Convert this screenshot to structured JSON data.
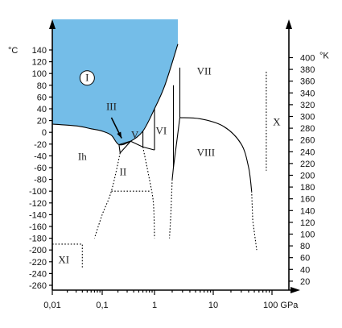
{
  "chart_data": {
    "type": "phase-diagram",
    "x_axis": {
      "scale": "log",
      "ticks": [
        0.01,
        0.1,
        1,
        10,
        100
      ],
      "tick_labels": [
        "0,01",
        "0,1",
        "1",
        "10",
        "100 GPa"
      ]
    },
    "y_axis_left": {
      "unit": "°C",
      "ticks": [
        140,
        120,
        100,
        80,
        60,
        40,
        20,
        0,
        -20,
        -40,
        -60,
        -80,
        -100,
        -120,
        -140,
        -160,
        -180,
        -200,
        -220,
        -240,
        -260
      ],
      "tick_labels": [
        "140",
        "120",
        "100",
        "80",
        "60",
        "40",
        "20",
        "0",
        "-20",
        "-40",
        "-60",
        "-80",
        "-100",
        "-120",
        "-140",
        "-160",
        "-180",
        "-200",
        "-220",
        "-240",
        "-260"
      ]
    },
    "y_axis_right": {
      "unit": "°K",
      "ticks": [
        400,
        380,
        360,
        340,
        320,
        300,
        280,
        260,
        240,
        220,
        200,
        180,
        160,
        140,
        120,
        100,
        80,
        60,
        40,
        20
      ],
      "tick_labels": [
        "400",
        "380",
        "360",
        "340",
        "320",
        "300",
        "280",
        "260",
        "240",
        "220",
        "200",
        "180",
        "160",
        "140",
        "120",
        "100",
        "80",
        "60",
        "40",
        "20"
      ]
    },
    "liquid_color": "#74bde8",
    "liquid_boundary": [
      [
        0.01,
        14
      ],
      [
        0.03,
        11
      ],
      [
        0.06,
        6
      ],
      [
        0.1,
        2
      ],
      [
        0.15,
        -5
      ],
      [
        0.21,
        -21
      ],
      [
        0.35,
        -15
      ],
      [
        0.6,
        2
      ],
      [
        1,
        40
      ],
      [
        1.5,
        80
      ],
      [
        2.5,
        150
      ]
    ],
    "solid_boundaries": [
      [
        [
          0.21,
          -21
        ],
        [
          0.22,
          -35
        ]
      ],
      [
        [
          0.21,
          -21
        ],
        [
          0.35,
          -15
        ]
      ],
      [
        [
          0.35,
          -15
        ],
        [
          0.22,
          -35
        ]
      ],
      [
        [
          0.35,
          -15
        ],
        [
          0.6,
          -25
        ]
      ],
      [
        [
          0.6,
          -25
        ],
        [
          0.6,
          2
        ]
      ],
      [
        [
          0.6,
          -25
        ],
        [
          1,
          -30
        ]
      ],
      [
        [
          1,
          -30
        ],
        [
          1,
          40
        ]
      ],
      [
        [
          2.1,
          80
        ],
        [
          2.1,
          -60
        ]
      ],
      [
        [
          2.1,
          -60
        ],
        [
          2,
          -80
        ]
      ],
      [
        [
          2.7,
          110
        ],
        [
          2.7,
          25
        ]
      ],
      [
        [
          2.7,
          25
        ],
        [
          6,
          23
        ],
        [
          15,
          10
        ],
        [
          30,
          -20
        ],
        [
          40,
          -60
        ],
        [
          45,
          -100
        ]
      ],
      [
        [
          2.1,
          -60
        ],
        [
          2.7,
          25
        ]
      ]
    ],
    "estimated_boundaries": [
      [
        [
          0.22,
          -35
        ],
        [
          0.15,
          -100
        ],
        [
          0.1,
          -140
        ],
        [
          0.07,
          -180
        ]
      ],
      [
        [
          0.6,
          -25
        ],
        [
          0.8,
          -80
        ],
        [
          0.95,
          -120
        ],
        [
          1,
          -180
        ]
      ],
      [
        [
          0.15,
          -100
        ],
        [
          0.8,
          -100
        ]
      ],
      [
        [
          2,
          -80
        ],
        [
          1.9,
          -140
        ],
        [
          1.8,
          -180
        ]
      ],
      [
        [
          45,
          -100
        ],
        [
          47,
          -150
        ],
        [
          55,
          -200
        ]
      ],
      [
        [
          0.01,
          -190
        ],
        [
          0.04,
          -190
        ],
        [
          0.04,
          -230
        ]
      ]
    ],
    "x_region_line": [
      [
        80,
        103
      ],
      [
        80,
        -65
      ]
    ],
    "regions": [
      {
        "label": "I",
        "p": 0.05,
        "t": 87,
        "circled": true
      },
      {
        "label": "Ih",
        "p": 0.04,
        "t": -47
      },
      {
        "label": "III",
        "p": 0.15,
        "t": 38
      },
      {
        "label": "V",
        "p": 0.42,
        "t": -10
      },
      {
        "label": "II",
        "p": 0.25,
        "t": -73
      },
      {
        "label": "VI",
        "p": 1.3,
        "t": -3
      },
      {
        "label": "VII",
        "p": 7,
        "t": 98
      },
      {
        "label": "VIII",
        "p": 7.5,
        "t": -40
      },
      {
        "label": "X",
        "p": 120,
        "t": 12
      },
      {
        "label": "XI",
        "p": 0.017,
        "t": -222
      }
    ],
    "arrow": {
      "from": [
        0.15,
        25
      ],
      "to": [
        0.235,
        -10
      ]
    }
  }
}
